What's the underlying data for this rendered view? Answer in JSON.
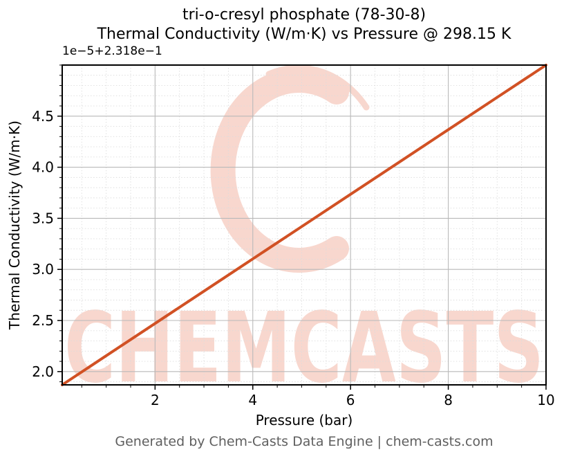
{
  "chart_data": {
    "type": "line",
    "title_line1": "tri-o-cresyl phosphate (78-30-8)",
    "title_line2": "Thermal Conductivity (W/m·K) vs Pressure @ 298.15 K",
    "xlabel": "Pressure (bar)",
    "ylabel": "Thermal Conductivity (W/m·K)",
    "y_axis_offset_text": "1e−5+2.318e−1",
    "y_offset_base": 0.2318,
    "y_multiplier": 1e-05,
    "xlim": [
      0.1,
      10
    ],
    "ylim_scaled": [
      1.87,
      5.0
    ],
    "ylim_actual": [
      0.2318187,
      0.23185
    ],
    "xticks": [
      2,
      4,
      6,
      8,
      10
    ],
    "xtick_labels": [
      "2",
      "4",
      "6",
      "8",
      "10"
    ],
    "yticks_scaled": [
      "2.0",
      "2.5",
      "3.0",
      "3.5",
      "4.0",
      "4.5"
    ],
    "x_minor_step": 0.5,
    "y_minor_step": 0.1,
    "grid": "major-solid, minor-dotted",
    "legend": null,
    "series": [
      {
        "name": "Thermal Conductivity",
        "color": "#d15124",
        "x": [
          0.1,
          1,
          2,
          3,
          4,
          5,
          6,
          7,
          8,
          9,
          10
        ],
        "y_scaled": [
          1.87,
          2.155,
          2.471,
          2.787,
          3.103,
          3.419,
          3.735,
          4.051,
          4.368,
          4.684,
          5.0
        ],
        "y_actual": [
          0.2318187,
          0.2318216,
          0.2318247,
          0.2318279,
          0.231831,
          0.2318342,
          0.2318374,
          0.2318405,
          0.2318437,
          0.2318468,
          0.23185
        ]
      }
    ],
    "colors": {
      "line": "#d15124",
      "major_grid": "#b9b9b9",
      "minor_grid": "#dcdcdc",
      "spine": "#000000",
      "watermark": "#f8d7ce",
      "footer_text": "#5f5f5f"
    },
    "watermark": {
      "text": "CHEMCASTS",
      "logo": "brush-stroke-ring"
    }
  },
  "footer": {
    "text": "Generated by Chem-Casts Data Engine | chem-casts.com"
  }
}
